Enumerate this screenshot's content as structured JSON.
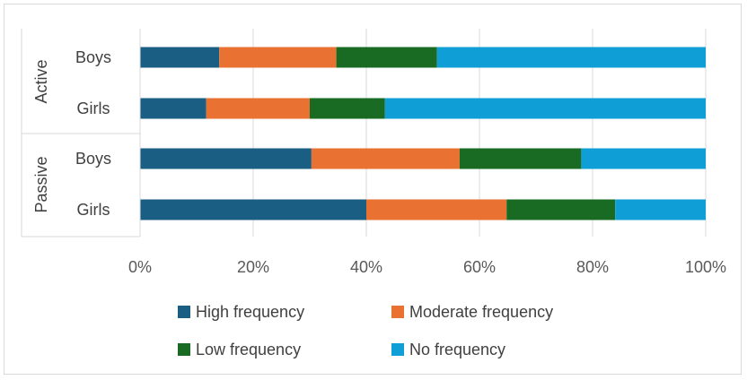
{
  "chart_data": {
    "type": "bar",
    "orientation": "horizontal",
    "stacked": "percent",
    "groups": [
      {
        "label": "Active",
        "categories": [
          "Boys",
          "Girls"
        ]
      },
      {
        "label": "Passive",
        "categories": [
          "Boys",
          "Girls"
        ]
      }
    ],
    "categories": [
      "Active Boys",
      "Active Girls",
      "Passive Boys",
      "Passive Girls"
    ],
    "series": [
      {
        "name": "High frequency",
        "color": "#1b5e84",
        "values": [
          14,
          11.7,
          30.3,
          40
        ]
      },
      {
        "name": "Moderate frequency",
        "color": "#e97132",
        "values": [
          20.7,
          18.3,
          26.2,
          24.8
        ]
      },
      {
        "name": "Low frequency",
        "color": "#196b24",
        "values": [
          17.8,
          13.3,
          21.5,
          19.2
        ]
      },
      {
        "name": "No frequency",
        "color": "#0f9ed5",
        "values": [
          47.5,
          56.7,
          22,
          16
        ]
      }
    ],
    "xlim": [
      0,
      100
    ],
    "xticks": [
      "0%",
      "20%",
      "40%",
      "60%",
      "80%",
      "100%"
    ],
    "grid": true,
    "legend_position": "bottom"
  }
}
